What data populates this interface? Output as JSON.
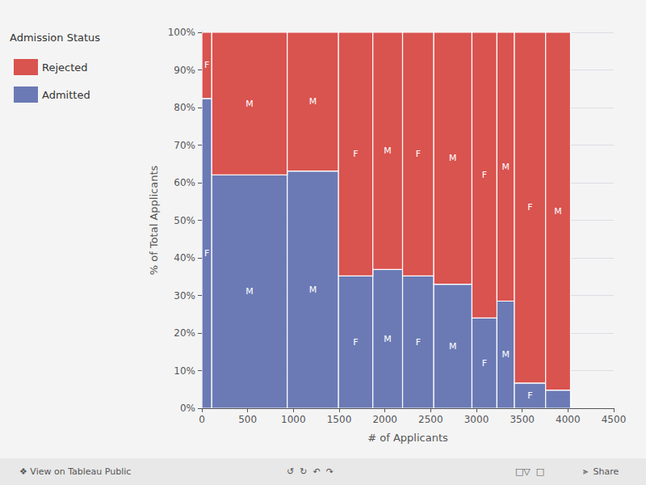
{
  "chart_data": {
    "type": "marimekko",
    "legend_title": "Admission Status",
    "xlabel": "# of Applicants",
    "ylabel": "% of Total Applicants",
    "x": [
      0,
      108,
      933,
      1493,
      1868,
      2193,
      2534,
      2951,
      3224,
      3415,
      3756
    ],
    "widths": [
      108,
      825,
      560,
      375,
      325,
      341,
      417,
      273,
      191,
      341,
      272
    ],
    "stacked": true,
    "series": [
      {
        "name": "Admitted",
        "color": "#6b7ab5",
        "values": [
          0.824,
          0.621,
          0.631,
          0.352,
          0.369,
          0.352,
          0.33,
          0.24,
          0.285,
          0.067,
          0.048
        ],
        "labels": [
          "F",
          "M",
          "M",
          "F",
          "M",
          "F",
          "M",
          "F",
          "M",
          "F",
          null
        ]
      },
      {
        "name": "Rejected",
        "color": "#d9534f",
        "values": [
          0.176,
          0.379,
          0.369,
          0.648,
          0.631,
          0.648,
          0.67,
          0.76,
          0.715,
          0.933,
          0.952
        ],
        "labels": [
          "F",
          "M",
          "M",
          "F",
          "M",
          "F",
          "M",
          "F",
          "M",
          "F",
          "M"
        ]
      }
    ],
    "xlim": [
      0,
      4500
    ],
    "xticks": [
      0,
      500,
      1000,
      1500,
      2000,
      2500,
      3000,
      3500,
      4000,
      4500
    ],
    "ylim": [
      0,
      1.0
    ],
    "yticks": [
      {
        "value": 0.0,
        "label": "0%"
      },
      {
        "value": 0.1,
        "label": "10%"
      },
      {
        "value": 0.2,
        "label": "20%"
      },
      {
        "value": 0.3,
        "label": "30%"
      },
      {
        "value": 0.4,
        "label": "40%"
      },
      {
        "value": 0.5,
        "label": "50%"
      },
      {
        "value": 0.6,
        "label": "60%"
      },
      {
        "value": 0.7,
        "label": "70%"
      },
      {
        "value": 0.8,
        "label": "80%"
      },
      {
        "value": 0.9,
        "label": "90%"
      },
      {
        "value": 1.0,
        "label": "100%"
      }
    ],
    "grid": true,
    "legend": "left",
    "annotations": [
      "❖ View on Tableau Public",
      "↺  ↻  ↶  ↷",
      "□▽  □",
      "⫸  Share"
    ]
  }
}
